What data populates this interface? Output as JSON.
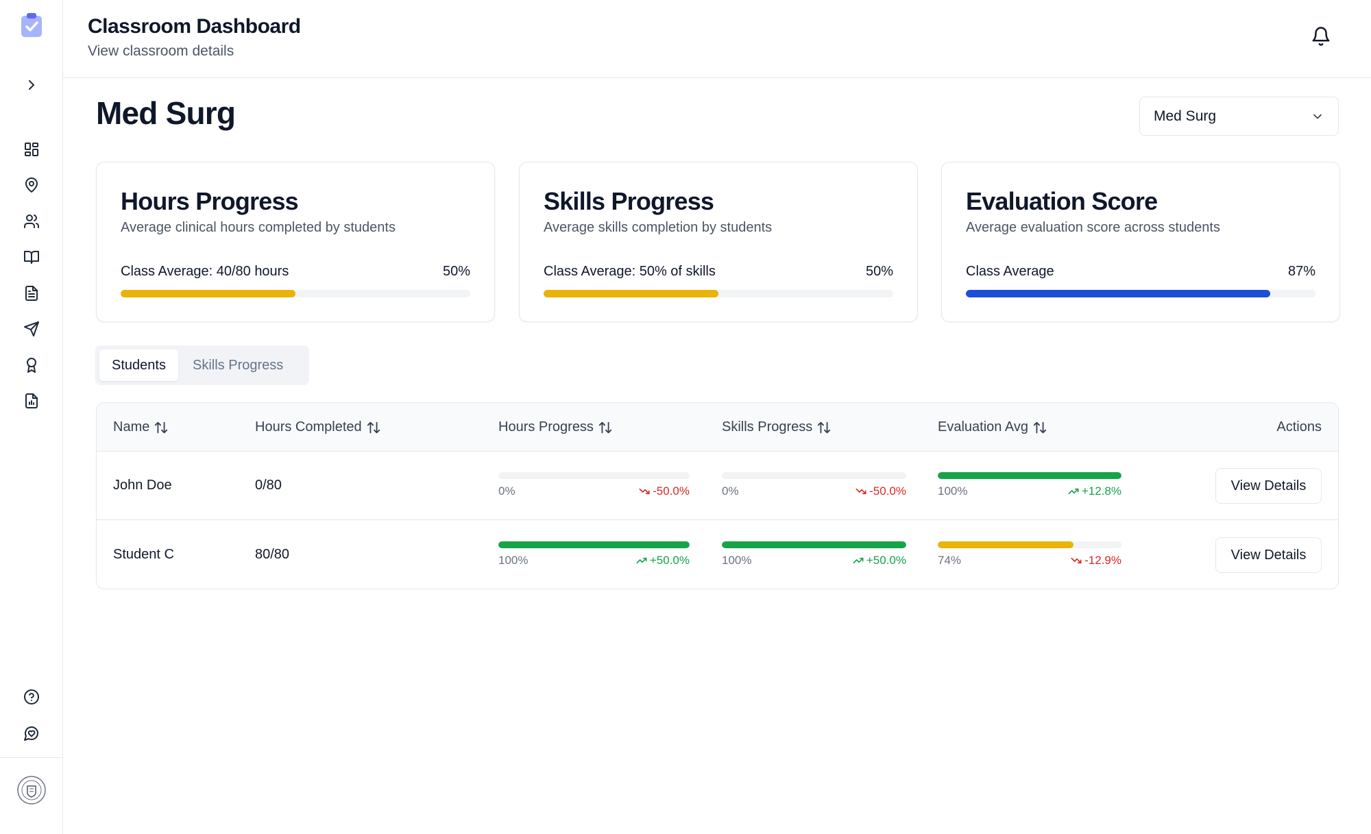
{
  "header": {
    "title": "Classroom Dashboard",
    "subtitle": "View classroom details"
  },
  "sidebar": {
    "items": [
      {
        "icon": "chevron-right-icon"
      },
      {
        "icon": "dashboard-icon"
      },
      {
        "icon": "map-pin-icon"
      },
      {
        "icon": "users-icon"
      },
      {
        "icon": "book-icon"
      },
      {
        "icon": "document-icon"
      },
      {
        "icon": "send-icon"
      },
      {
        "icon": "award-icon"
      },
      {
        "icon": "report-icon"
      },
      {
        "icon": "help-icon"
      },
      {
        "icon": "chat-icon"
      }
    ]
  },
  "course": {
    "title": "Med Surg",
    "selected": "Med Surg"
  },
  "cards": [
    {
      "title": "Hours Progress",
      "description": "Average clinical hours completed by students",
      "label": "Class Average: 40/80 hours",
      "percent_text": "50%",
      "value": 0.5,
      "color": "#eab308"
    },
    {
      "title": "Skills Progress",
      "description": "Average skills completion by students",
      "label": "Class Average: 50% of skills",
      "percent_text": "50%",
      "value": 0.5,
      "color": "#eab308"
    },
    {
      "title": "Evaluation Score",
      "description": "Average evaluation score across students",
      "label": "Class Average",
      "percent_text": "87%",
      "value": 0.87,
      "color": "#1d4ed8"
    }
  ],
  "tabs": {
    "students": "Students",
    "skills": "Skills Progress"
  },
  "table": {
    "headers": {
      "name": "Name",
      "hours_completed": "Hours Completed",
      "hours_progress": "Hours Progress",
      "skills_progress": "Skills Progress",
      "evaluation_avg": "Evaluation Avg",
      "actions": "Actions"
    },
    "rows": [
      {
        "name": "John Doe",
        "hours": "0/80",
        "hours_progress": {
          "pct": "0%",
          "value": 0.0,
          "delta": "-50.0%",
          "trend": "down",
          "color": "#16a34a"
        },
        "skills_progress": {
          "pct": "0%",
          "value": 0.0,
          "delta": "-50.0%",
          "trend": "down",
          "color": "#16a34a"
        },
        "evaluation": {
          "pct": "100%",
          "value": 1.0,
          "delta": "+12.8%",
          "trend": "up",
          "color": "#16a34a"
        },
        "action": "View Details"
      },
      {
        "name": "Student C",
        "hours": "80/80",
        "hours_progress": {
          "pct": "100%",
          "value": 1.0,
          "delta": "+50.0%",
          "trend": "up",
          "color": "#16a34a"
        },
        "skills_progress": {
          "pct": "100%",
          "value": 1.0,
          "delta": "+50.0%",
          "trend": "up",
          "color": "#16a34a"
        },
        "evaluation": {
          "pct": "74%",
          "value": 0.74,
          "delta": "-12.9%",
          "trend": "down",
          "color": "#eab308"
        },
        "action": "View Details"
      }
    ]
  }
}
